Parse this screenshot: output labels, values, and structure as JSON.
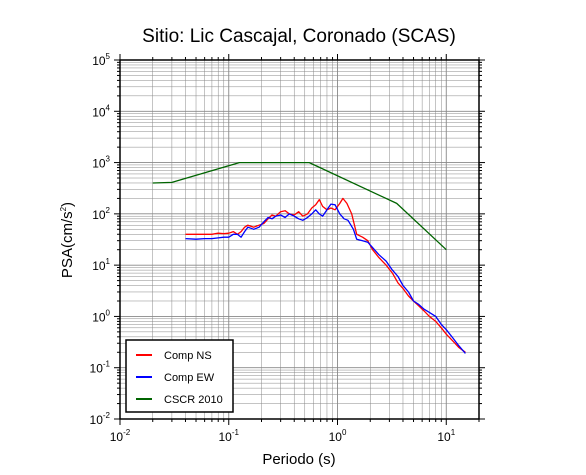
{
  "chart_data": {
    "type": "line",
    "title": "Sitio: Lic Cascajal, Coronado (SCAS)",
    "xlabel": "Periodo (s)",
    "ylabel_main": "PSA(cm/s",
    "ylabel_sup": "2",
    "ylabel_close": ")",
    "x_scale": "log",
    "y_scale": "log",
    "xlim": [
      0.01,
      20
    ],
    "ylim": [
      0.01,
      100000
    ],
    "grid": true,
    "legend_position": "bottom-left",
    "x_ticks": [
      {
        "value": 0.01,
        "base": "10",
        "exp": "-2"
      },
      {
        "value": 0.1,
        "base": "10",
        "exp": "-1"
      },
      {
        "value": 1,
        "base": "10",
        "exp": "0"
      },
      {
        "value": 10,
        "base": "10",
        "exp": "1"
      }
    ],
    "y_ticks": [
      {
        "value": 0.01,
        "base": "10",
        "exp": "-2"
      },
      {
        "value": 0.1,
        "base": "10",
        "exp": "-1"
      },
      {
        "value": 1,
        "base": "10",
        "exp": "0"
      },
      {
        "value": 10,
        "base": "10",
        "exp": "1"
      },
      {
        "value": 100,
        "base": "10",
        "exp": "2"
      },
      {
        "value": 1000,
        "base": "10",
        "exp": "3"
      },
      {
        "value": 10000,
        "base": "10",
        "exp": "4"
      },
      {
        "value": 100000,
        "base": "10",
        "exp": "5"
      }
    ],
    "series": [
      {
        "name": "Comp NS",
        "color": "#ff0000",
        "points": [
          [
            0.04,
            40
          ],
          [
            0.05,
            40
          ],
          [
            0.06,
            40
          ],
          [
            0.07,
            40
          ],
          [
            0.08,
            42
          ],
          [
            0.09,
            41
          ],
          [
            0.1,
            42
          ],
          [
            0.11,
            45
          ],
          [
            0.12,
            40
          ],
          [
            0.13,
            45
          ],
          [
            0.14,
            55
          ],
          [
            0.15,
            60
          ],
          [
            0.17,
            55
          ],
          [
            0.19,
            60
          ],
          [
            0.21,
            65
          ],
          [
            0.23,
            80
          ],
          [
            0.25,
            95
          ],
          [
            0.27,
            90
          ],
          [
            0.3,
            110
          ],
          [
            0.33,
            115
          ],
          [
            0.36,
            100
          ],
          [
            0.4,
            95
          ],
          [
            0.44,
            110
          ],
          [
            0.48,
            90
          ],
          [
            0.53,
            100
          ],
          [
            0.58,
            130
          ],
          [
            0.63,
            150
          ],
          [
            0.68,
            190
          ],
          [
            0.73,
            140
          ],
          [
            0.8,
            120
          ],
          [
            0.87,
            130
          ],
          [
            0.95,
            120
          ],
          [
            1.05,
            160
          ],
          [
            1.12,
            200
          ],
          [
            1.22,
            160
          ],
          [
            1.35,
            100
          ],
          [
            1.5,
            40
          ],
          [
            1.7,
            35
          ],
          [
            1.9,
            30
          ],
          [
            2.1,
            20
          ],
          [
            2.4,
            14
          ],
          [
            2.8,
            10
          ],
          [
            3.2,
            7
          ],
          [
            3.6,
            4.5
          ],
          [
            4.0,
            3.5
          ],
          [
            4.5,
            2.5
          ],
          [
            5.0,
            2.0
          ],
          [
            5.6,
            1.6
          ],
          [
            6.2,
            1.3
          ],
          [
            7.0,
            1.0
          ],
          [
            8.0,
            0.8
          ],
          [
            9.0,
            0.6
          ],
          [
            10.0,
            0.45
          ],
          [
            11.5,
            0.33
          ],
          [
            13.0,
            0.25
          ],
          [
            15.0,
            0.2
          ]
        ]
      },
      {
        "name": "Comp EW",
        "color": "#0000ff",
        "points": [
          [
            0.04,
            33
          ],
          [
            0.05,
            32
          ],
          [
            0.06,
            33
          ],
          [
            0.07,
            33
          ],
          [
            0.08,
            34
          ],
          [
            0.09,
            35
          ],
          [
            0.1,
            35
          ],
          [
            0.11,
            40
          ],
          [
            0.12,
            40
          ],
          [
            0.13,
            35
          ],
          [
            0.14,
            45
          ],
          [
            0.15,
            55
          ],
          [
            0.17,
            50
          ],
          [
            0.19,
            55
          ],
          [
            0.21,
            70
          ],
          [
            0.23,
            85
          ],
          [
            0.25,
            80
          ],
          [
            0.27,
            90
          ],
          [
            0.3,
            95
          ],
          [
            0.33,
            85
          ],
          [
            0.36,
            100
          ],
          [
            0.4,
            90
          ],
          [
            0.44,
            80
          ],
          [
            0.48,
            75
          ],
          [
            0.53,
            85
          ],
          [
            0.58,
            100
          ],
          [
            0.63,
            120
          ],
          [
            0.68,
            100
          ],
          [
            0.73,
            90
          ],
          [
            0.8,
            120
          ],
          [
            0.87,
            155
          ],
          [
            0.95,
            150
          ],
          [
            1.05,
            100
          ],
          [
            1.15,
            80
          ],
          [
            1.25,
            75
          ],
          [
            1.4,
            50
          ],
          [
            1.5,
            32
          ],
          [
            1.7,
            30
          ],
          [
            1.9,
            28
          ],
          [
            2.1,
            22
          ],
          [
            2.4,
            16
          ],
          [
            2.8,
            12
          ],
          [
            3.2,
            8
          ],
          [
            3.6,
            6
          ],
          [
            4.0,
            4
          ],
          [
            4.5,
            3
          ],
          [
            5.0,
            2
          ],
          [
            5.6,
            1.7
          ],
          [
            6.2,
            1.4
          ],
          [
            7.0,
            1.2
          ],
          [
            8.0,
            1.0
          ],
          [
            9.0,
            0.7
          ],
          [
            10.0,
            0.55
          ],
          [
            11.5,
            0.38
          ],
          [
            13.0,
            0.27
          ],
          [
            15.0,
            0.19
          ]
        ]
      },
      {
        "name": "CSCR 2010",
        "color": "#006400",
        "points": [
          [
            0.02,
            400
          ],
          [
            0.03,
            410
          ],
          [
            0.125,
            1000
          ],
          [
            0.55,
            1000
          ],
          [
            3.5,
            160
          ],
          [
            10,
            20
          ]
        ]
      }
    ]
  }
}
